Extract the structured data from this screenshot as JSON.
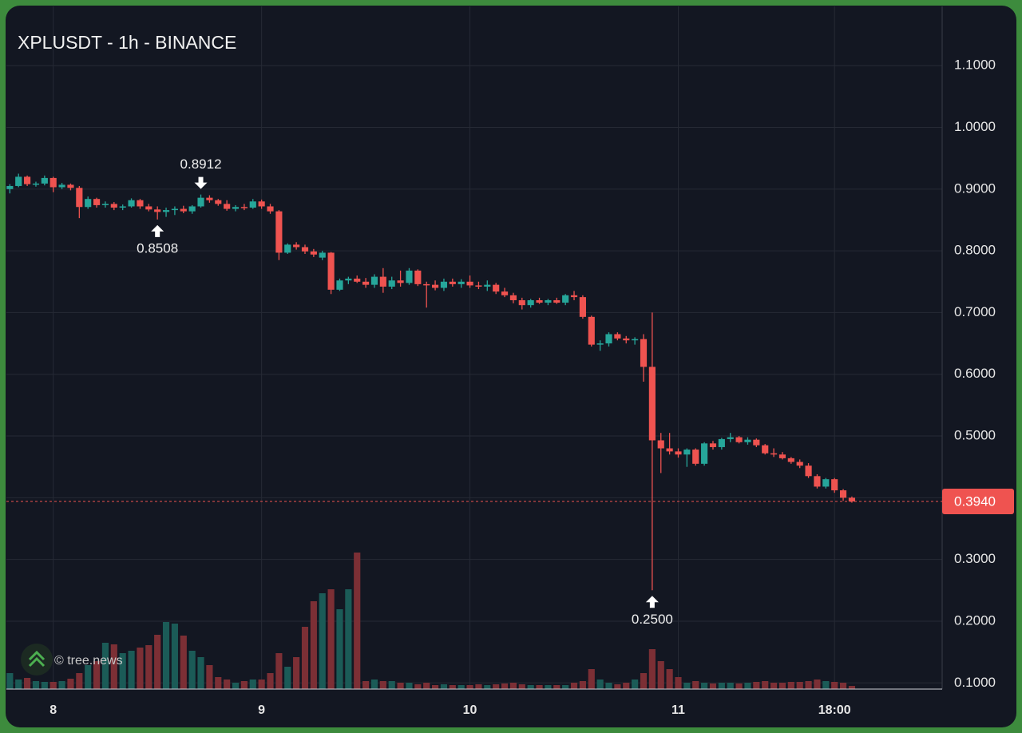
{
  "chart_data": {
    "type": "candlestick",
    "title": "XPLUSDT - 1h - BINANCE",
    "watermark": "© tree.news",
    "open": [
      0.9,
      0.905,
      0.92,
      0.908,
      0.909,
      0.918,
      0.903,
      0.907,
      0.902,
      0.871,
      0.884,
      0.874,
      0.876,
      0.87,
      0.872,
      0.882,
      0.872,
      0.867,
      0.863,
      0.866,
      0.868,
      0.864,
      0.872,
      0.886,
      0.882,
      0.876,
      0.868,
      0.871,
      0.87,
      0.88,
      0.872,
      0.864,
      0.797,
      0.81,
      0.806,
      0.799,
      0.789,
      0.797,
      0.737,
      0.752,
      0.755,
      0.75,
      0.745,
      0.758,
      0.742,
      0.752,
      0.748,
      0.768,
      0.746,
      0.745,
      0.74,
      0.75,
      0.746,
      0.75,
      0.744,
      0.742,
      0.745,
      0.734,
      0.728,
      0.72,
      0.712,
      0.72,
      0.716,
      0.72,
      0.716,
      0.728,
      0.725,
      0.693,
      0.648,
      0.65,
      0.665,
      0.658,
      0.655,
      0.657,
      0.612,
      0.493,
      0.48,
      0.475,
      0.47,
      0.478,
      0.455,
      0.488,
      0.482,
      0.495,
      0.498,
      0.49,
      0.494,
      0.485,
      0.472,
      0.47,
      0.464,
      0.458,
      0.452,
      0.435,
      0.418,
      0.43,
      0.412,
      0.4
    ],
    "high": [
      0.908,
      0.925,
      0.922,
      0.912,
      0.922,
      0.92,
      0.91,
      0.909,
      0.905,
      0.888,
      0.886,
      0.88,
      0.879,
      0.875,
      0.885,
      0.884,
      0.876,
      0.872,
      0.87,
      0.872,
      0.873,
      0.874,
      0.8912,
      0.89,
      0.884,
      0.882,
      0.874,
      0.876,
      0.884,
      0.883,
      0.876,
      0.866,
      0.812,
      0.814,
      0.81,
      0.803,
      0.8,
      0.798,
      0.755,
      0.758,
      0.76,
      0.756,
      0.762,
      0.772,
      0.758,
      0.768,
      0.772,
      0.77,
      0.75,
      0.752,
      0.755,
      0.755,
      0.754,
      0.76,
      0.75,
      0.752,
      0.748,
      0.74,
      0.732,
      0.724,
      0.722,
      0.724,
      0.722,
      0.724,
      0.73,
      0.735,
      0.728,
      0.695,
      0.655,
      0.668,
      0.668,
      0.662,
      0.66,
      0.665,
      0.7,
      0.505,
      0.505,
      0.48,
      0.48,
      0.48,
      0.49,
      0.492,
      0.497,
      0.505,
      0.5,
      0.498,
      0.496,
      0.487,
      0.48,
      0.474,
      0.466,
      0.462,
      0.456,
      0.438,
      0.432,
      0.432,
      0.414,
      0.402
    ],
    "low": [
      0.893,
      0.903,
      0.905,
      0.904,
      0.906,
      0.895,
      0.9,
      0.898,
      0.853,
      0.868,
      0.87,
      0.87,
      0.866,
      0.866,
      0.87,
      0.868,
      0.864,
      0.8508,
      0.855,
      0.858,
      0.861,
      0.86,
      0.87,
      0.878,
      0.873,
      0.865,
      0.864,
      0.866,
      0.868,
      0.868,
      0.86,
      0.785,
      0.795,
      0.802,
      0.795,
      0.79,
      0.785,
      0.73,
      0.735,
      0.746,
      0.748,
      0.74,
      0.74,
      0.732,
      0.738,
      0.742,
      0.745,
      0.743,
      0.708,
      0.736,
      0.735,
      0.742,
      0.74,
      0.74,
      0.738,
      0.735,
      0.73,
      0.725,
      0.715,
      0.705,
      0.708,
      0.714,
      0.712,
      0.714,
      0.712,
      0.72,
      0.69,
      0.645,
      0.638,
      0.645,
      0.655,
      0.65,
      0.648,
      0.588,
      0.25,
      0.44,
      0.47,
      0.465,
      0.45,
      0.452,
      0.452,
      0.478,
      0.478,
      0.49,
      0.488,
      0.486,
      0.482,
      0.47,
      0.466,
      0.462,
      0.455,
      0.448,
      0.432,
      0.415,
      0.415,
      0.408,
      0.395,
      0.392
    ],
    "close": [
      0.905,
      0.92,
      0.908,
      0.909,
      0.918,
      0.903,
      0.907,
      0.902,
      0.871,
      0.884,
      0.874,
      0.876,
      0.87,
      0.872,
      0.882,
      0.872,
      0.867,
      0.863,
      0.866,
      0.868,
      0.864,
      0.872,
      0.886,
      0.882,
      0.876,
      0.868,
      0.871,
      0.87,
      0.88,
      0.872,
      0.864,
      0.797,
      0.81,
      0.806,
      0.799,
      0.794,
      0.797,
      0.737,
      0.752,
      0.755,
      0.75,
      0.745,
      0.758,
      0.742,
      0.752,
      0.748,
      0.768,
      0.746,
      0.745,
      0.74,
      0.75,
      0.746,
      0.75,
      0.744,
      0.742,
      0.745,
      0.734,
      0.728,
      0.72,
      0.712,
      0.72,
      0.716,
      0.72,
      0.716,
      0.728,
      0.725,
      0.693,
      0.648,
      0.65,
      0.665,
      0.658,
      0.655,
      0.657,
      0.612,
      0.493,
      0.48,
      0.475,
      0.47,
      0.478,
      0.455,
      0.488,
      0.482,
      0.495,
      0.498,
      0.49,
      0.494,
      0.485,
      0.472,
      0.47,
      0.464,
      0.458,
      0.452,
      0.435,
      0.418,
      0.43,
      0.412,
      0.4,
      0.394
    ],
    "volume": [
      20,
      12,
      14,
      10,
      9,
      9,
      10,
      13,
      20,
      30,
      35,
      58,
      56,
      45,
      48,
      52,
      55,
      68,
      84,
      82,
      67,
      48,
      40,
      30,
      15,
      12,
      8,
      10,
      12,
      12,
      20,
      45,
      28,
      40,
      78,
      110,
      120,
      125,
      100,
      125,
      171,
      10,
      12,
      10,
      10,
      8,
      8,
      6,
      8,
      5,
      6,
      5,
      5,
      5,
      6,
      5,
      6,
      7,
      8,
      6,
      5,
      5,
      5,
      5,
      5,
      8,
      10,
      25,
      12,
      8,
      6,
      8,
      12,
      20,
      50,
      35,
      25,
      15,
      8,
      10,
      8,
      7,
      8,
      8,
      7,
      8,
      9,
      10,
      8,
      8,
      9,
      9,
      10,
      12,
      10,
      9,
      8,
      4
    ],
    "up_color": "#26a69a",
    "down_color": "#ef5350",
    "up_volume_color": "#1b5b57",
    "down_volume_color": "#7c2f35",
    "xlim": [
      -0.4,
      107.4
    ],
    "xticks": [
      {
        "value": 5,
        "label": "8"
      },
      {
        "value": 29,
        "label": "9"
      },
      {
        "value": 53,
        "label": "10"
      },
      {
        "value": 77,
        "label": "11"
      },
      {
        "value": 95,
        "label": "18:00"
      }
    ],
    "ylim": [
      0.09,
      1.196
    ],
    "yticks": [
      {
        "value": 0.1,
        "label": "0.1000"
      },
      {
        "value": 0.2,
        "label": "0.2000"
      },
      {
        "value": 0.3,
        "label": "0.3000"
      },
      {
        "value": 0.4,
        "label": "0.4000"
      },
      {
        "value": 0.5,
        "label": "0.5000"
      },
      {
        "value": 0.6,
        "label": "0.6000"
      },
      {
        "value": 0.7,
        "label": "0.7000"
      },
      {
        "value": 0.8,
        "label": "0.8000"
      },
      {
        "value": 0.9,
        "label": "0.9000"
      },
      {
        "value": 1.0,
        "label": "1.0000"
      },
      {
        "value": 1.1,
        "label": "1.1000"
      }
    ],
    "volume_lim": [
      0,
      200
    ],
    "grid": true,
    "current_price": {
      "value": 0.394,
      "label": "0.3940"
    },
    "annotations": [
      {
        "x": 22,
        "value": 0.8912,
        "label": "0.8912",
        "position": "above"
      },
      {
        "x": 17,
        "value": 0.8508,
        "label": "0.8508",
        "position": "below"
      },
      {
        "x": 74,
        "value": 0.25,
        "label": "0.2500",
        "position": "below"
      }
    ]
  }
}
